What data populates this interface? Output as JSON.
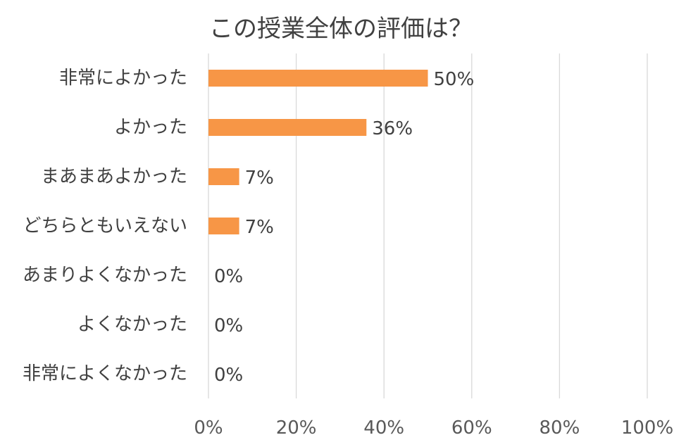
{
  "chart_data": {
    "type": "bar",
    "orientation": "horizontal",
    "title": "この授業全体の評価は？",
    "categories": [
      "非常によかった",
      "よかった",
      "まあまあよかった",
      "どちらともいえない",
      "あまりよくなかった",
      "よくなかった",
      "非常によくなかった"
    ],
    "values": [
      50,
      36,
      7,
      7,
      0,
      0,
      0
    ],
    "data_labels": [
      "50%",
      "36%",
      "7%",
      "7%",
      "0%",
      "0%",
      "0%"
    ],
    "x_ticks": [
      "0%",
      "20%",
      "40%",
      "60%",
      "80%",
      "100%"
    ],
    "xlim": [
      0,
      100
    ],
    "grid": true,
    "legend": "none",
    "bar_color": "#F79646"
  }
}
